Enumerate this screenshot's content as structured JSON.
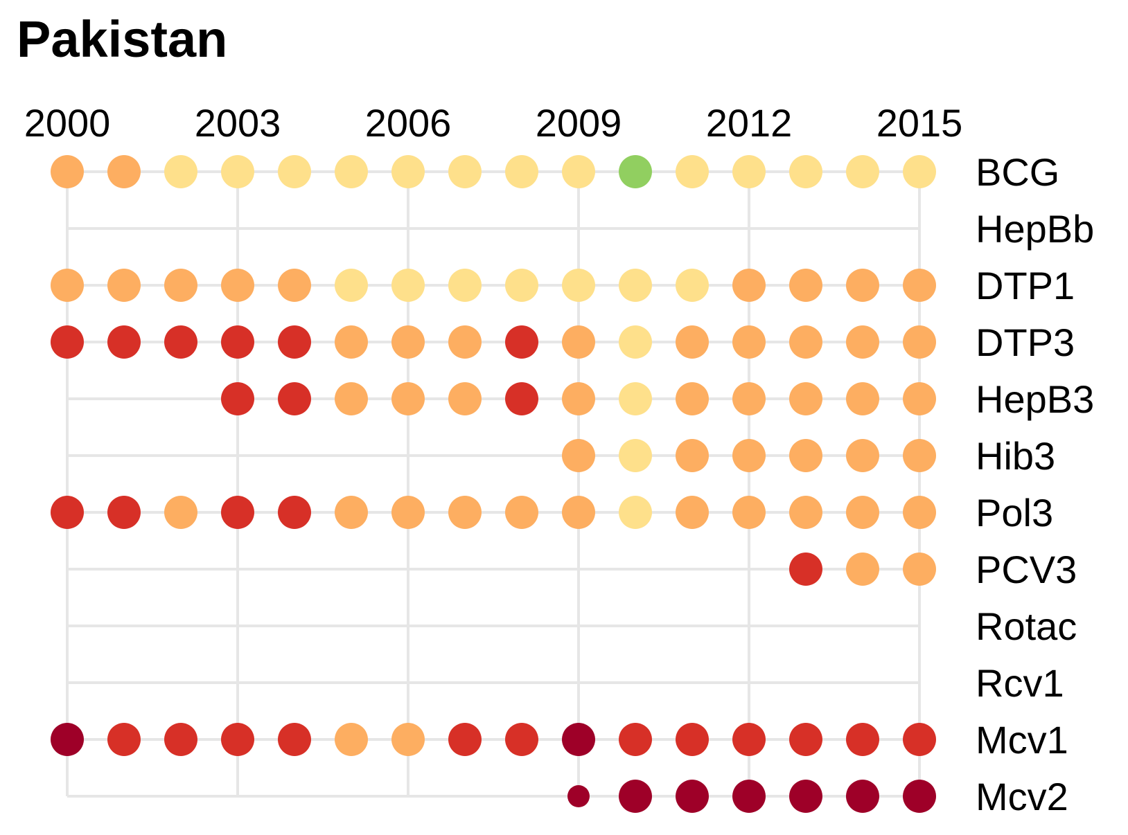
{
  "chart_data": {
    "type": "scatter",
    "title": "Pakistan",
    "x": [
      2000,
      2001,
      2002,
      2003,
      2004,
      2005,
      2006,
      2007,
      2008,
      2009,
      2010,
      2011,
      2012,
      2013,
      2014,
      2015
    ],
    "x_tick_labels": [
      "2000",
      "2003",
      "2006",
      "2009",
      "2012",
      "2015"
    ],
    "x_tick_values": [
      2000,
      2003,
      2006,
      2009,
      2012,
      2015
    ],
    "xlim": [
      2000,
      2015
    ],
    "grid": true,
    "colors": {
      "D": "#9e0028",
      "R": "#d73027",
      "O": "#fdae61",
      "Y": "#fee08b",
      "G": "#91cf60",
      "grid": "#e6e6e6"
    },
    "series": [
      {
        "name": "BCG",
        "values": [
          "O",
          "O",
          "Y",
          "Y",
          "Y",
          "Y",
          "Y",
          "Y",
          "Y",
          "Y",
          "G",
          "Y",
          "Y",
          "Y",
          "Y",
          "Y"
        ]
      },
      {
        "name": "HepBb",
        "values": [
          null,
          null,
          null,
          null,
          null,
          null,
          null,
          null,
          null,
          null,
          null,
          null,
          null,
          null,
          null,
          null
        ]
      },
      {
        "name": "DTP1",
        "values": [
          "O",
          "O",
          "O",
          "O",
          "O",
          "Y",
          "Y",
          "Y",
          "Y",
          "Y",
          "Y",
          "Y",
          "O",
          "O",
          "O",
          "O"
        ]
      },
      {
        "name": "DTP3",
        "values": [
          "R",
          "R",
          "R",
          "R",
          "R",
          "O",
          "O",
          "O",
          "R",
          "O",
          "Y",
          "O",
          "O",
          "O",
          "O",
          "O"
        ]
      },
      {
        "name": "HepB3",
        "values": [
          null,
          null,
          null,
          "R",
          "R",
          "O",
          "O",
          "O",
          "R",
          "O",
          "Y",
          "O",
          "O",
          "O",
          "O",
          "O"
        ]
      },
      {
        "name": "Hib3",
        "values": [
          null,
          null,
          null,
          null,
          null,
          null,
          null,
          null,
          null,
          "O",
          "Y",
          "O",
          "O",
          "O",
          "O",
          "O"
        ]
      },
      {
        "name": "Pol3",
        "values": [
          "R",
          "R",
          "O",
          "R",
          "R",
          "O",
          "O",
          "O",
          "O",
          "O",
          "Y",
          "O",
          "O",
          "O",
          "O",
          "O"
        ]
      },
      {
        "name": "PCV3",
        "values": [
          null,
          null,
          null,
          null,
          null,
          null,
          null,
          null,
          null,
          null,
          null,
          null,
          null,
          "R",
          "O",
          "O"
        ]
      },
      {
        "name": "Rotac",
        "values": [
          null,
          null,
          null,
          null,
          null,
          null,
          null,
          null,
          null,
          null,
          null,
          null,
          null,
          null,
          null,
          null
        ]
      },
      {
        "name": "Rcv1",
        "values": [
          null,
          null,
          null,
          null,
          null,
          null,
          null,
          null,
          null,
          null,
          null,
          null,
          null,
          null,
          null,
          null
        ]
      },
      {
        "name": "Mcv1",
        "values": [
          "D",
          "R",
          "R",
          "R",
          "R",
          "O",
          "O",
          "R",
          "R",
          "D",
          "R",
          "R",
          "R",
          "R",
          "R",
          "R"
        ]
      },
      {
        "name": "Mcv2",
        "values": [
          null,
          null,
          null,
          null,
          null,
          null,
          null,
          null,
          null,
          "D",
          "D",
          "D",
          "D",
          "D",
          "D",
          "D"
        ]
      }
    ],
    "small_points": [
      {
        "series": "Mcv2",
        "x": 2009
      }
    ]
  }
}
